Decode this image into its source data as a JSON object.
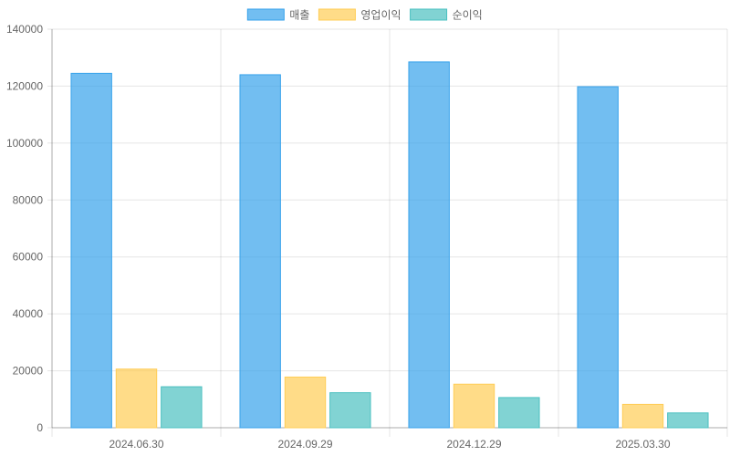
{
  "chart_data": {
    "type": "bar",
    "categories": [
      "2024.06.30",
      "2024.09.29",
      "2024.12.29",
      "2025.03.30"
    ],
    "series": [
      {
        "name": "매출",
        "values": [
          124500,
          124000,
          128500,
          119800
        ],
        "color": "#36a2eb"
      },
      {
        "name": "영업이익",
        "values": [
          20600,
          17800,
          15300,
          8200
        ],
        "color": "#ffcd56"
      },
      {
        "name": "순이익",
        "values": [
          14400,
          12300,
          10600,
          5200
        ],
        "color": "#4bc0c0"
      }
    ],
    "ylim": [
      0,
      140000
    ],
    "yticks": [
      0,
      20000,
      40000,
      60000,
      80000,
      100000,
      120000,
      140000
    ],
    "grid": true,
    "legend": "top-center"
  }
}
